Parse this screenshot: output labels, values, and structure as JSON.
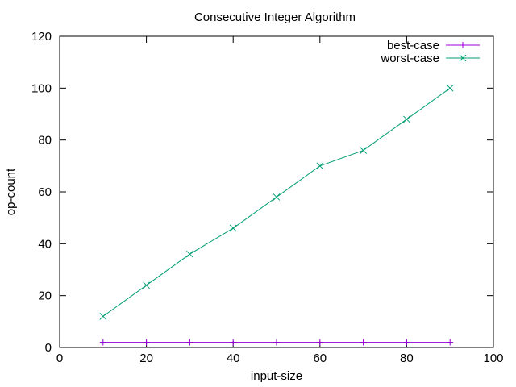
{
  "chart_data": {
    "type": "line",
    "title": "Consecutive Integer Algorithm",
    "xlabel": "input-size",
    "ylabel": "op-count",
    "xlim": [
      0,
      100
    ],
    "ylim": [
      0,
      120
    ],
    "xticks": [
      0,
      20,
      40,
      60,
      80,
      100
    ],
    "yticks": [
      0,
      20,
      40,
      60,
      80,
      100,
      120
    ],
    "grid": false,
    "legend_position": "top-right",
    "series": [
      {
        "name": "best-case",
        "color": "#9400d3",
        "marker": "plus",
        "x": [
          10,
          20,
          30,
          40,
          50,
          60,
          70,
          80,
          90
        ],
        "y": [
          2,
          2,
          2,
          2,
          2,
          2,
          2,
          2,
          2
        ]
      },
      {
        "name": "worst-case",
        "color": "#009e73",
        "marker": "cross",
        "x": [
          10,
          20,
          30,
          40,
          50,
          60,
          70,
          80,
          90
        ],
        "y": [
          12,
          24,
          36,
          46,
          58,
          70,
          76,
          88,
          100
        ]
      }
    ]
  }
}
